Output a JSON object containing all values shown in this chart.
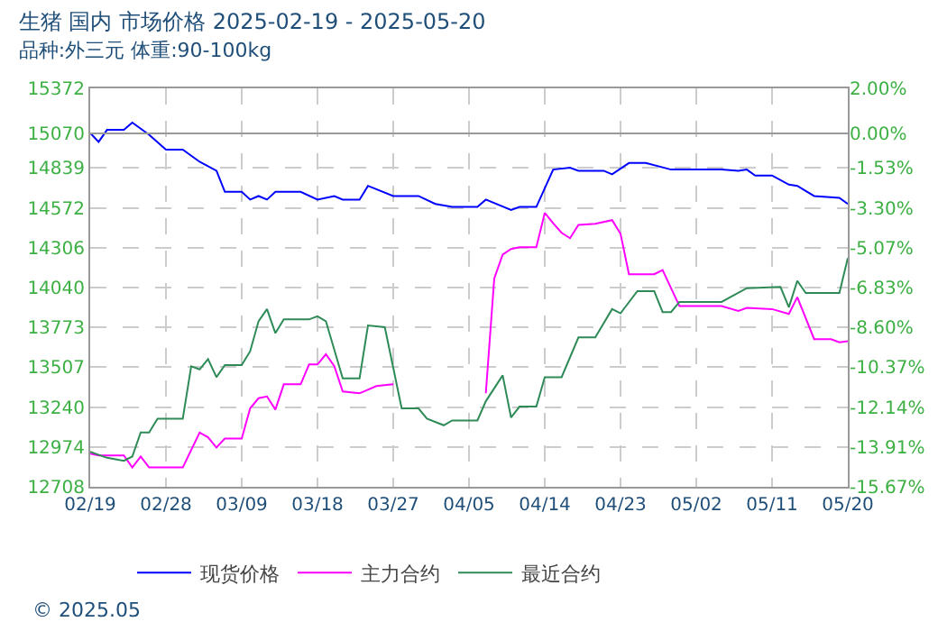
{
  "chart_data": {
    "type": "line",
    "title": "生猪 国内 市场价格 2025-02-19 - 2025-05-20",
    "subtitle": "品种:外三元 体重:90-100kg",
    "xlim": [
      "2025-02-19",
      "2025-05-20"
    ],
    "xticks": [
      {
        "value": "2025-02-19",
        "label": "02/19"
      },
      {
        "value": "2025-02-28",
        "label": "02/28"
      },
      {
        "value": "2025-03-09",
        "label": "03/09"
      },
      {
        "value": "2025-03-18",
        "label": "03/18"
      },
      {
        "value": "2025-03-27",
        "label": "03/27"
      },
      {
        "value": "2025-04-05",
        "label": "04/05"
      },
      {
        "value": "2025-04-14",
        "label": "04/14"
      },
      {
        "value": "2025-04-23",
        "label": "04/23"
      },
      {
        "value": "2025-05-02",
        "label": "05/02"
      },
      {
        "value": "2025-05-11",
        "label": "05/11"
      },
      {
        "value": "2025-05-20",
        "label": "05/20"
      }
    ],
    "ylim": [
      12708,
      15372
    ],
    "yticks": [
      12708,
      12974,
      13240,
      13507,
      13773,
      14040,
      14306,
      14572,
      14839,
      15070,
      15372
    ],
    "y2lim": [
      -15.67,
      2
    ],
    "y2ticks": [
      {
        "value": -15.67,
        "label": "-15.67%"
      },
      {
        "value": -13.91,
        "label": "-13.91%"
      },
      {
        "value": -12.14,
        "label": "-12.14%"
      },
      {
        "value": -10.37,
        "label": "-10.37%"
      },
      {
        "value": -8.6,
        "label": "-8.60%"
      },
      {
        "value": -6.83,
        "label": "-6.83%"
      },
      {
        "value": -5.07,
        "label": "-5.07%"
      },
      {
        "value": -3.3,
        "label": "-3.30%"
      },
      {
        "value": -1.53,
        "label": "-1.53%"
      },
      {
        "value": 0,
        "label": "0.00%"
      },
      {
        "value": 2,
        "label": "2.00%"
      }
    ],
    "ref_lines": [
      {
        "axis": "y2",
        "value": 0,
        "color": "#999999"
      }
    ],
    "grid": true,
    "legend": "bottom",
    "line_style": "solid",
    "marker": "none",
    "annotations": [
      "© 2025.05"
    ],
    "series": [
      {
        "name": "现货价格",
        "color": "#0000ff",
        "x": [
          "2025-02-19",
          "2025-02-20",
          "2025-02-21",
          "2025-02-23",
          "2025-02-24",
          "2025-02-26",
          "2025-02-28",
          "2025-03-02",
          "2025-03-04",
          "2025-03-06",
          "2025-03-07",
          "2025-03-09",
          "2025-03-10",
          "2025-03-11",
          "2025-03-12",
          "2025-03-13",
          "2025-03-16",
          "2025-03-18",
          "2025-03-20",
          "2025-03-21",
          "2025-03-23",
          "2025-03-24",
          "2025-03-27",
          "2025-03-30",
          "2025-04-01",
          "2025-04-03",
          "2025-04-06",
          "2025-04-07",
          "2025-04-10",
          "2025-04-11",
          "2025-04-13",
          "2025-04-15",
          "2025-04-17",
          "2025-04-18",
          "2025-04-21",
          "2025-04-22",
          "2025-04-24",
          "2025-04-26",
          "2025-04-29",
          "2025-05-05",
          "2025-05-07",
          "2025-05-08",
          "2025-05-09",
          "2025-05-11",
          "2025-05-13",
          "2025-05-14",
          "2025-05-16",
          "2025-05-19",
          "2025-05-20"
        ],
        "values": [
          15074,
          15014,
          15094,
          15094,
          15143,
          15062,
          14962,
          14962,
          14881,
          14821,
          14680,
          14680,
          14628,
          14652,
          14628,
          14680,
          14680,
          14628,
          14652,
          14628,
          14628,
          14720,
          14652,
          14652,
          14599,
          14579,
          14579,
          14628,
          14559,
          14579,
          14579,
          14829,
          14841,
          14821,
          14821,
          14797,
          14873,
          14873,
          14829,
          14829,
          14821,
          14829,
          14789,
          14789,
          14728,
          14720,
          14652,
          14640,
          14599
        ]
      },
      {
        "name": "主力合约",
        "color": "#ff00ff",
        "x": [
          "2025-02-19",
          "2025-02-20",
          "2025-02-23",
          "2025-02-24",
          "2025-02-25",
          "2025-02-26",
          "2025-03-02",
          "2025-03-04",
          "2025-03-05",
          "2025-03-06",
          "2025-03-07",
          "2025-03-09",
          "2025-03-10",
          "2025-03-11",
          "2025-03-12",
          "2025-03-13",
          "2025-03-14",
          "2025-03-16",
          "2025-03-17",
          "2025-03-18",
          "2025-03-19",
          "2025-03-20",
          "2025-03-21",
          "2025-03-23",
          "2025-03-25",
          "2025-03-27",
          "2025-03-28",
          "2025-04-07",
          "2025-04-08",
          "2025-04-09",
          "2025-04-10",
          "2025-04-11",
          "2025-04-13",
          "2025-04-14",
          "2025-04-15",
          "2025-04-16",
          "2025-04-17",
          "2025-04-18",
          "2025-04-20",
          "2025-04-22",
          "2025-04-23",
          "2025-04-24",
          "2025-04-27",
          "2025-04-28",
          "2025-04-30",
          "2025-05-05",
          "2025-05-07",
          "2025-05-08",
          "2025-05-11",
          "2025-05-13",
          "2025-05-14",
          "2025-05-16",
          "2025-05-18",
          "2025-05-19",
          "2025-05-20"
        ],
        "values": [
          12930,
          12918,
          12918,
          12837,
          12910,
          12837,
          12837,
          13071,
          13039,
          12970,
          13031,
          13031,
          13232,
          13300,
          13312,
          13224,
          13393,
          13393,
          13526,
          13526,
          13594,
          13514,
          13345,
          13333,
          13381,
          13393,
          null,
          13333,
          14100,
          14260,
          14298,
          14310,
          14310,
          14539,
          14470,
          14406,
          14370,
          14459,
          14467,
          14491,
          14400,
          14129,
          14129,
          14157,
          13916,
          13916,
          13884,
          13904,
          13896,
          13864,
          13976,
          13695,
          13695,
          13674,
          13682
        ]
      },
      {
        "name": "最近合约",
        "color": "#2e8b57",
        "x": [
          "2025-02-19",
          "2025-02-21",
          "2025-02-23",
          "2025-02-24",
          "2025-02-25",
          "2025-02-26",
          "2025-02-27",
          "2025-03-02",
          "2025-03-03",
          "2025-03-04",
          "2025-03-05",
          "2025-03-06",
          "2025-03-07",
          "2025-03-09",
          "2025-03-10",
          "2025-03-11",
          "2025-03-12",
          "2025-03-13",
          "2025-03-14",
          "2025-03-17",
          "2025-03-18",
          "2025-03-19",
          "2025-03-21",
          "2025-03-23",
          "2025-03-24",
          "2025-03-26",
          "2025-03-28",
          "2025-03-30",
          "2025-03-31",
          "2025-04-02",
          "2025-04-03",
          "2025-04-06",
          "2025-04-07",
          "2025-04-09",
          "2025-04-10",
          "2025-04-11",
          "2025-04-13",
          "2025-04-14",
          "2025-04-16",
          "2025-04-18",
          "2025-04-20",
          "2025-04-22",
          "2025-04-23",
          "2025-04-25",
          "2025-04-27",
          "2025-04-28",
          "2025-04-29",
          "2025-04-30",
          "2025-05-05",
          "2025-05-08",
          "2025-05-12",
          "2025-05-13",
          "2025-05-14",
          "2025-05-15",
          "2025-05-19",
          "2025-05-20"
        ],
        "values": [
          12942,
          12902,
          12882,
          12910,
          13071,
          13071,
          13163,
          13163,
          13514,
          13493,
          13562,
          13441,
          13522,
          13522,
          13614,
          13815,
          13896,
          13735,
          13827,
          13827,
          13848,
          13815,
          13433,
          13433,
          13787,
          13775,
          13232,
          13232,
          13163,
          13119,
          13151,
          13151,
          13280,
          13453,
          13171,
          13244,
          13244,
          13441,
          13441,
          13707,
          13707,
          13896,
          13868,
          14016,
          14016,
          13876,
          13876,
          13944,
          13944,
          14036,
          14044,
          13908,
          14085,
          14004,
          14004,
          14238
        ]
      }
    ]
  }
}
